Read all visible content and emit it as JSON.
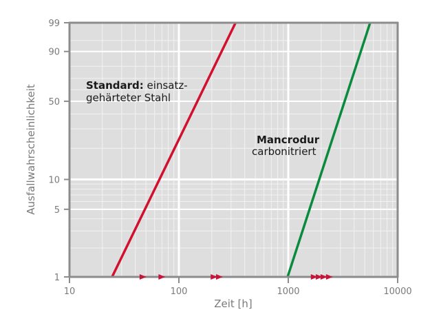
{
  "chart_data": {
    "type": "line",
    "title": "",
    "xlabel": "Zeit [h]",
    "ylabel": "Ausfallwahrscheinlichkeit",
    "xscale": "log",
    "yscale": "weibull",
    "xlim": [
      10,
      10000
    ],
    "ylim": [
      1,
      99
    ],
    "x_ticks": [
      10,
      100,
      1000,
      10000
    ],
    "x_tick_labels": [
      "10",
      "100",
      "1000",
      "10000"
    ],
    "y_ticks": [
      1,
      5,
      10,
      50,
      90,
      99
    ],
    "y_tick_labels": [
      "1",
      "5",
      "10",
      "50",
      "90",
      "99"
    ],
    "grid": true,
    "series": [
      {
        "name": "Standard: einsatzgehärteter Stahl",
        "color": "#d0102e",
        "points": [
          {
            "x": 24.5,
            "y": 1
          },
          {
            "x": 330,
            "y": 99
          }
        ]
      },
      {
        "name": "Mancrodur carbonitriert",
        "color": "#0a8a3c",
        "points": [
          {
            "x": 985,
            "y": 1
          },
          {
            "x": 5600,
            "y": 99
          }
        ]
      }
    ],
    "suspended_markers": {
      "color": "#c4163a",
      "y": 1,
      "x": [
        47,
        70,
        210,
        235,
        1730,
        1920,
        2120,
        2380
      ]
    },
    "annotations": [
      {
        "bold": "Standard:",
        "text": " einsatz-",
        "line2": "gehärteter Stahl"
      },
      {
        "bold": "Mancrodur",
        "text": "",
        "line2": "carbonitriert"
      }
    ]
  },
  "colors": {
    "plot_bg": "#dedede",
    "grid_major": "#ffffff",
    "grid_minor": "#f2f2f2",
    "axis": "#8c8c8c"
  }
}
